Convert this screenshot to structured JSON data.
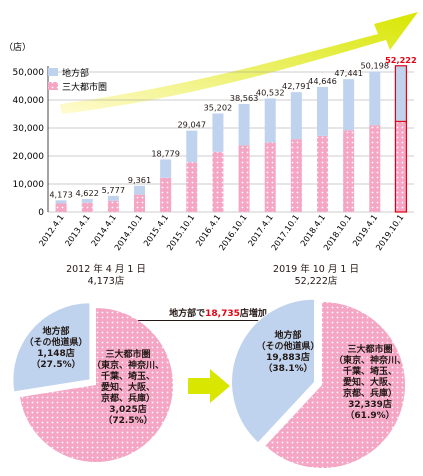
{
  "chart_data": [
    {
      "type": "bar",
      "stacked": true,
      "unit": "（店）",
      "categories": [
        "2012.4.1",
        "2013.4.1",
        "2014.4.1",
        "2014.10.1",
        "2015.4.1",
        "2015.10.1",
        "2016.4.1",
        "2016.10.1",
        "2017.4.1",
        "2017.10.1",
        "2018.4.1",
        "2018.10.1",
        "2019.4.1",
        "2019.10.1"
      ],
      "totals_labels": [
        "4,173",
        "4,622",
        "5,777",
        "9,361",
        "18,779",
        "29,047",
        "35,202",
        "38,563",
        "40,532",
        "42,791",
        "44,646",
        "47,441",
        "50,198",
        "52,222"
      ],
      "totals": [
        4173,
        4622,
        5777,
        9361,
        18779,
        29047,
        35202,
        38563,
        40532,
        42791,
        44646,
        47441,
        50198,
        52222
      ],
      "series": [
        {
          "name": "三大都市圏",
          "values": [
            3025,
            3300,
            4000,
            6200,
            12200,
            17800,
            21500,
            23800,
            24800,
            26000,
            27200,
            29200,
            31000,
            32339
          ]
        },
        {
          "name": "地方部",
          "values": [
            1148,
            1322,
            1777,
            3161,
            6579,
            11247,
            13702,
            14763,
            15732,
            16791,
            17446,
            18241,
            19198,
            19883
          ]
        }
      ],
      "ylim": [
        0,
        50000
      ],
      "yticks": [
        0,
        10000,
        20000,
        30000,
        40000,
        50000
      ],
      "ytick_labels": [
        "0",
        "10,000",
        "20,000",
        "30,000",
        "40,000",
        "50,000"
      ],
      "legend_position": "top-left",
      "highlight_category": "2019.10.1",
      "colors": {
        "rural": "#bfd3ee",
        "metro": "#f4a6c4",
        "highlight": "#e60012",
        "arrow": "#d8e600"
      }
    },
    {
      "type": "pie",
      "title_line1": "2012 年 4 月 1 日",
      "title_line2": "4,173店",
      "slices": [
        {
          "name": "地方部（その他道県）",
          "value": 1148,
          "percent": 27.5,
          "label_lines": [
            "地方部",
            "（その他道県）",
            "1,148店",
            "（27.5%）"
          ]
        },
        {
          "name": "三大都市圏",
          "value": 3025,
          "percent": 72.5,
          "label_lines": [
            "三大都市圏",
            "（東京、神奈川、",
            "千葉、埼玉、",
            "愛知、大阪、",
            "京都、兵庫）",
            "3,025店",
            "（72.5%）"
          ]
        }
      ]
    },
    {
      "type": "pie",
      "title_line1": "2019 年 10 月 1 日",
      "title_line2": "52,222店",
      "slices": [
        {
          "name": "地方部（その他道県）",
          "value": 19883,
          "percent": 38.1,
          "label_lines": [
            "地方部",
            "（その他道県）",
            "19,883店",
            "（38.1%）"
          ]
        },
        {
          "name": "三大都市圏",
          "value": 32339,
          "percent": 61.9,
          "label_lines": [
            "三大都市圏",
            "（東京、神奈川、",
            "千葉、埼玉、",
            "愛知、大阪、",
            "京都、兵庫）",
            "32,339店",
            "（61.9%）"
          ]
        }
      ]
    }
  ],
  "callout": {
    "prefix": "地方部で",
    "value": "18,735",
    "suffix": "店増加"
  }
}
